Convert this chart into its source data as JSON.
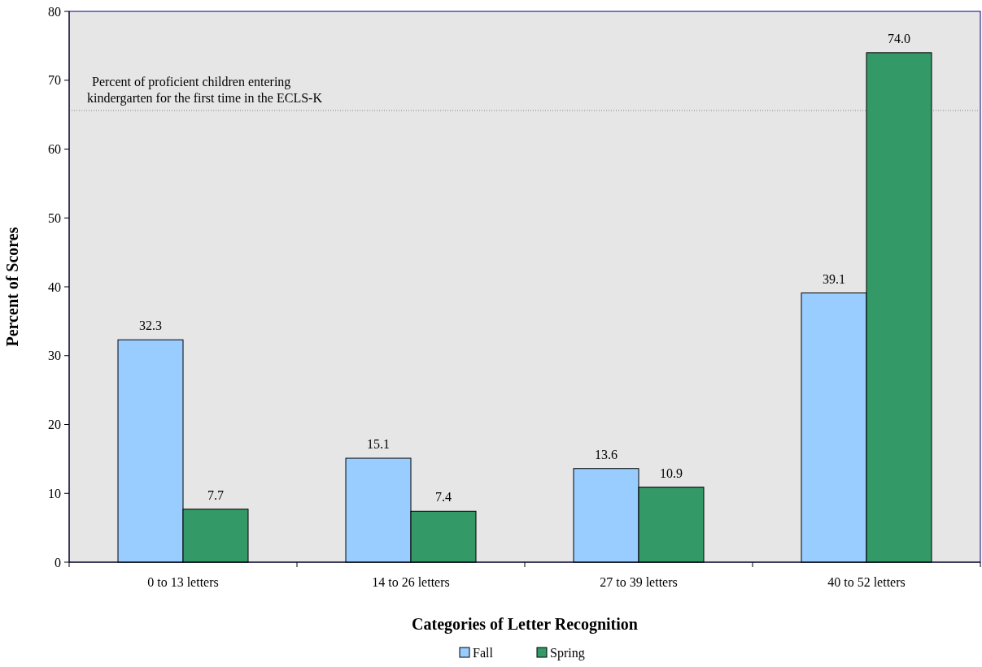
{
  "chart_data": {
    "type": "bar",
    "xlabel": "Categories of Letter Recognition",
    "ylabel": "Percent of Scores",
    "categories": [
      "0 to 13 letters",
      "14 to 26 letters",
      "27 to 39 letters",
      "40 to 52 letters"
    ],
    "series": [
      {
        "name": "Fall",
        "color": "#99ccff",
        "values": [
          32.3,
          15.1,
          13.6,
          39.1
        ],
        "value_labels": [
          "32.3",
          "15.1",
          "13.6",
          "39.1"
        ]
      },
      {
        "name": "Spring",
        "color": "#339966",
        "values": [
          7.7,
          7.4,
          10.9,
          74.0
        ],
        "value_labels": [
          "7.7",
          "7.4",
          "10.9",
          "74.0"
        ]
      }
    ],
    "ylim": [
      0,
      80
    ],
    "yticks": [
      0,
      10,
      20,
      30,
      40,
      50,
      60,
      70,
      80
    ],
    "grid": false,
    "legend": "bottom",
    "ref_lines": [
      {
        "axis": "y",
        "value": 65.6,
        "label": "Percent of proficient children entering kindergarten for the first time in the ECLS-K",
        "color": "#808080",
        "line_style": "dotted"
      }
    ]
  }
}
